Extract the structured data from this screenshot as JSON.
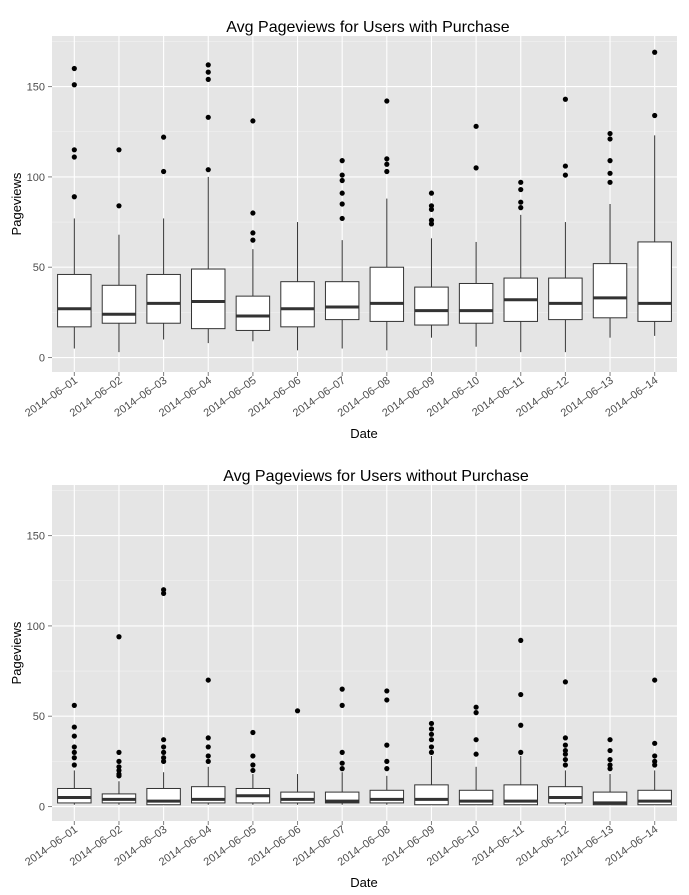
{
  "chart_data": [
    {
      "type": "box",
      "title": "Avg Pageviews for Users with Purchase",
      "xlabel": "Date",
      "ylabel": "Pageviews",
      "ylim": [
        -8,
        178
      ],
      "yticks": [
        0,
        50,
        100,
        150
      ],
      "background": "#e5e5e5",
      "grid": true,
      "categories": [
        "2014-06-01",
        "2014-06-02",
        "2014-06-03",
        "2014-06-04",
        "2014-06-05",
        "2014-06-06",
        "2014-06-07",
        "2014-06-08",
        "2014-06-09",
        "2014-06-10",
        "2014-06-11",
        "2014-06-12",
        "2014-06-13",
        "2014-06-14"
      ],
      "boxes": [
        {
          "min": 5,
          "q1": 17,
          "median": 27,
          "q3": 46,
          "max": 77,
          "outliers": [
            89,
            111,
            115,
            151,
            160
          ]
        },
        {
          "min": 3,
          "q1": 19,
          "median": 24,
          "q3": 40,
          "max": 68,
          "outliers": [
            84,
            115
          ]
        },
        {
          "min": 10,
          "q1": 19,
          "median": 30,
          "q3": 46,
          "max": 77,
          "outliers": [
            103,
            122
          ]
        },
        {
          "min": 8,
          "q1": 16,
          "median": 31,
          "q3": 49,
          "max": 100,
          "outliers": [
            104,
            133,
            154,
            158,
            162
          ]
        },
        {
          "min": 9,
          "q1": 15,
          "median": 23,
          "q3": 34,
          "max": 60,
          "outliers": [
            65,
            69,
            80,
            131
          ]
        },
        {
          "min": 4,
          "q1": 17,
          "median": 27,
          "q3": 42,
          "max": 75,
          "outliers": []
        },
        {
          "min": 5,
          "q1": 21,
          "median": 28,
          "q3": 42,
          "max": 65,
          "outliers": [
            77,
            85,
            91,
            98,
            101,
            109
          ]
        },
        {
          "min": 4,
          "q1": 20,
          "median": 30,
          "q3": 50,
          "max": 88,
          "outliers": [
            103,
            107,
            110,
            142
          ]
        },
        {
          "min": 11,
          "q1": 18,
          "median": 26,
          "q3": 39,
          "max": 66,
          "outliers": [
            74,
            76,
            82,
            84,
            91
          ]
        },
        {
          "min": 6,
          "q1": 19,
          "median": 26,
          "q3": 41,
          "max": 64,
          "outliers": [
            105,
            128
          ]
        },
        {
          "min": 3,
          "q1": 20,
          "median": 32,
          "q3": 44,
          "max": 79,
          "outliers": [
            83,
            86,
            93,
            97
          ]
        },
        {
          "min": 3,
          "q1": 21,
          "median": 30,
          "q3": 44,
          "max": 75,
          "outliers": [
            101,
            106,
            143
          ]
        },
        {
          "min": 11,
          "q1": 22,
          "median": 33,
          "q3": 52,
          "max": 85,
          "outliers": [
            97,
            102,
            109,
            121,
            124
          ]
        },
        {
          "min": 12,
          "q1": 20,
          "median": 30,
          "q3": 64,
          "max": 123,
          "outliers": [
            134,
            169
          ]
        }
      ]
    },
    {
      "type": "box",
      "title": "Avg Pageviews for Users without Purchase",
      "xlabel": "Date",
      "ylabel": "Pageviews",
      "ylim": [
        -8,
        178
      ],
      "yticks": [
        0,
        50,
        100,
        150
      ],
      "background": "#e5e5e5",
      "grid": true,
      "categories": [
        "2014-06-01",
        "2014-06-02",
        "2014-06-03",
        "2014-06-04",
        "2014-06-05",
        "2014-06-06",
        "2014-06-07",
        "2014-06-08",
        "2014-06-09",
        "2014-06-10",
        "2014-06-11",
        "2014-06-12",
        "2014-06-13",
        "2014-06-14"
      ],
      "boxes": [
        {
          "min": 1,
          "q1": 2,
          "median": 5,
          "q3": 10,
          "max": 20,
          "outliers": [
            23,
            27,
            30,
            33,
            39,
            44,
            56
          ]
        },
        {
          "min": 1,
          "q1": 2,
          "median": 4,
          "q3": 7,
          "max": 14,
          "outliers": [
            17,
            18,
            20,
            22,
            25,
            30,
            94
          ]
        },
        {
          "min": 1,
          "q1": 1,
          "median": 3,
          "q3": 10,
          "max": 19,
          "outliers": [
            25,
            27,
            30,
            33,
            37,
            118,
            120
          ]
        },
        {
          "min": 1,
          "q1": 2,
          "median": 4,
          "q3": 11,
          "max": 22,
          "outliers": [
            25,
            28,
            33,
            38,
            70
          ]
        },
        {
          "min": 1,
          "q1": 2,
          "median": 6,
          "q3": 10,
          "max": 18,
          "outliers": [
            20,
            23,
            28,
            41
          ]
        },
        {
          "min": 1,
          "q1": 2,
          "median": 4,
          "q3": 8,
          "max": 18,
          "outliers": [
            53
          ]
        },
        {
          "min": 1,
          "q1": 2,
          "median": 3,
          "q3": 8,
          "max": 19,
          "outliers": [
            21,
            24,
            30,
            56,
            65
          ]
        },
        {
          "min": 1,
          "q1": 2,
          "median": 4,
          "q3": 9,
          "max": 17,
          "outliers": [
            21,
            25,
            34,
            59,
            64
          ]
        },
        {
          "min": 1,
          "q1": 1,
          "median": 4,
          "q3": 12,
          "max": 28,
          "outliers": [
            30,
            33,
            37,
            40,
            43,
            46
          ]
        },
        {
          "min": 1,
          "q1": 1,
          "median": 3,
          "q3": 9,
          "max": 22,
          "outliers": [
            29,
            37,
            52,
            55
          ]
        },
        {
          "min": 1,
          "q1": 1,
          "median": 3,
          "q3": 12,
          "max": 28,
          "outliers": [
            30,
            45,
            62,
            92
          ]
        },
        {
          "min": 1,
          "q1": 2,
          "median": 5,
          "q3": 11,
          "max": 20,
          "outliers": [
            23,
            26,
            29,
            31,
            34,
            38,
            69
          ]
        },
        {
          "min": 1,
          "q1": 1,
          "median": 2,
          "q3": 8,
          "max": 18,
          "outliers": [
            21,
            23,
            26,
            31,
            37
          ]
        },
        {
          "min": 1,
          "q1": 1,
          "median": 3,
          "q3": 9,
          "max": 20,
          "outliers": [
            23,
            25,
            28,
            35,
            70
          ]
        }
      ]
    }
  ]
}
